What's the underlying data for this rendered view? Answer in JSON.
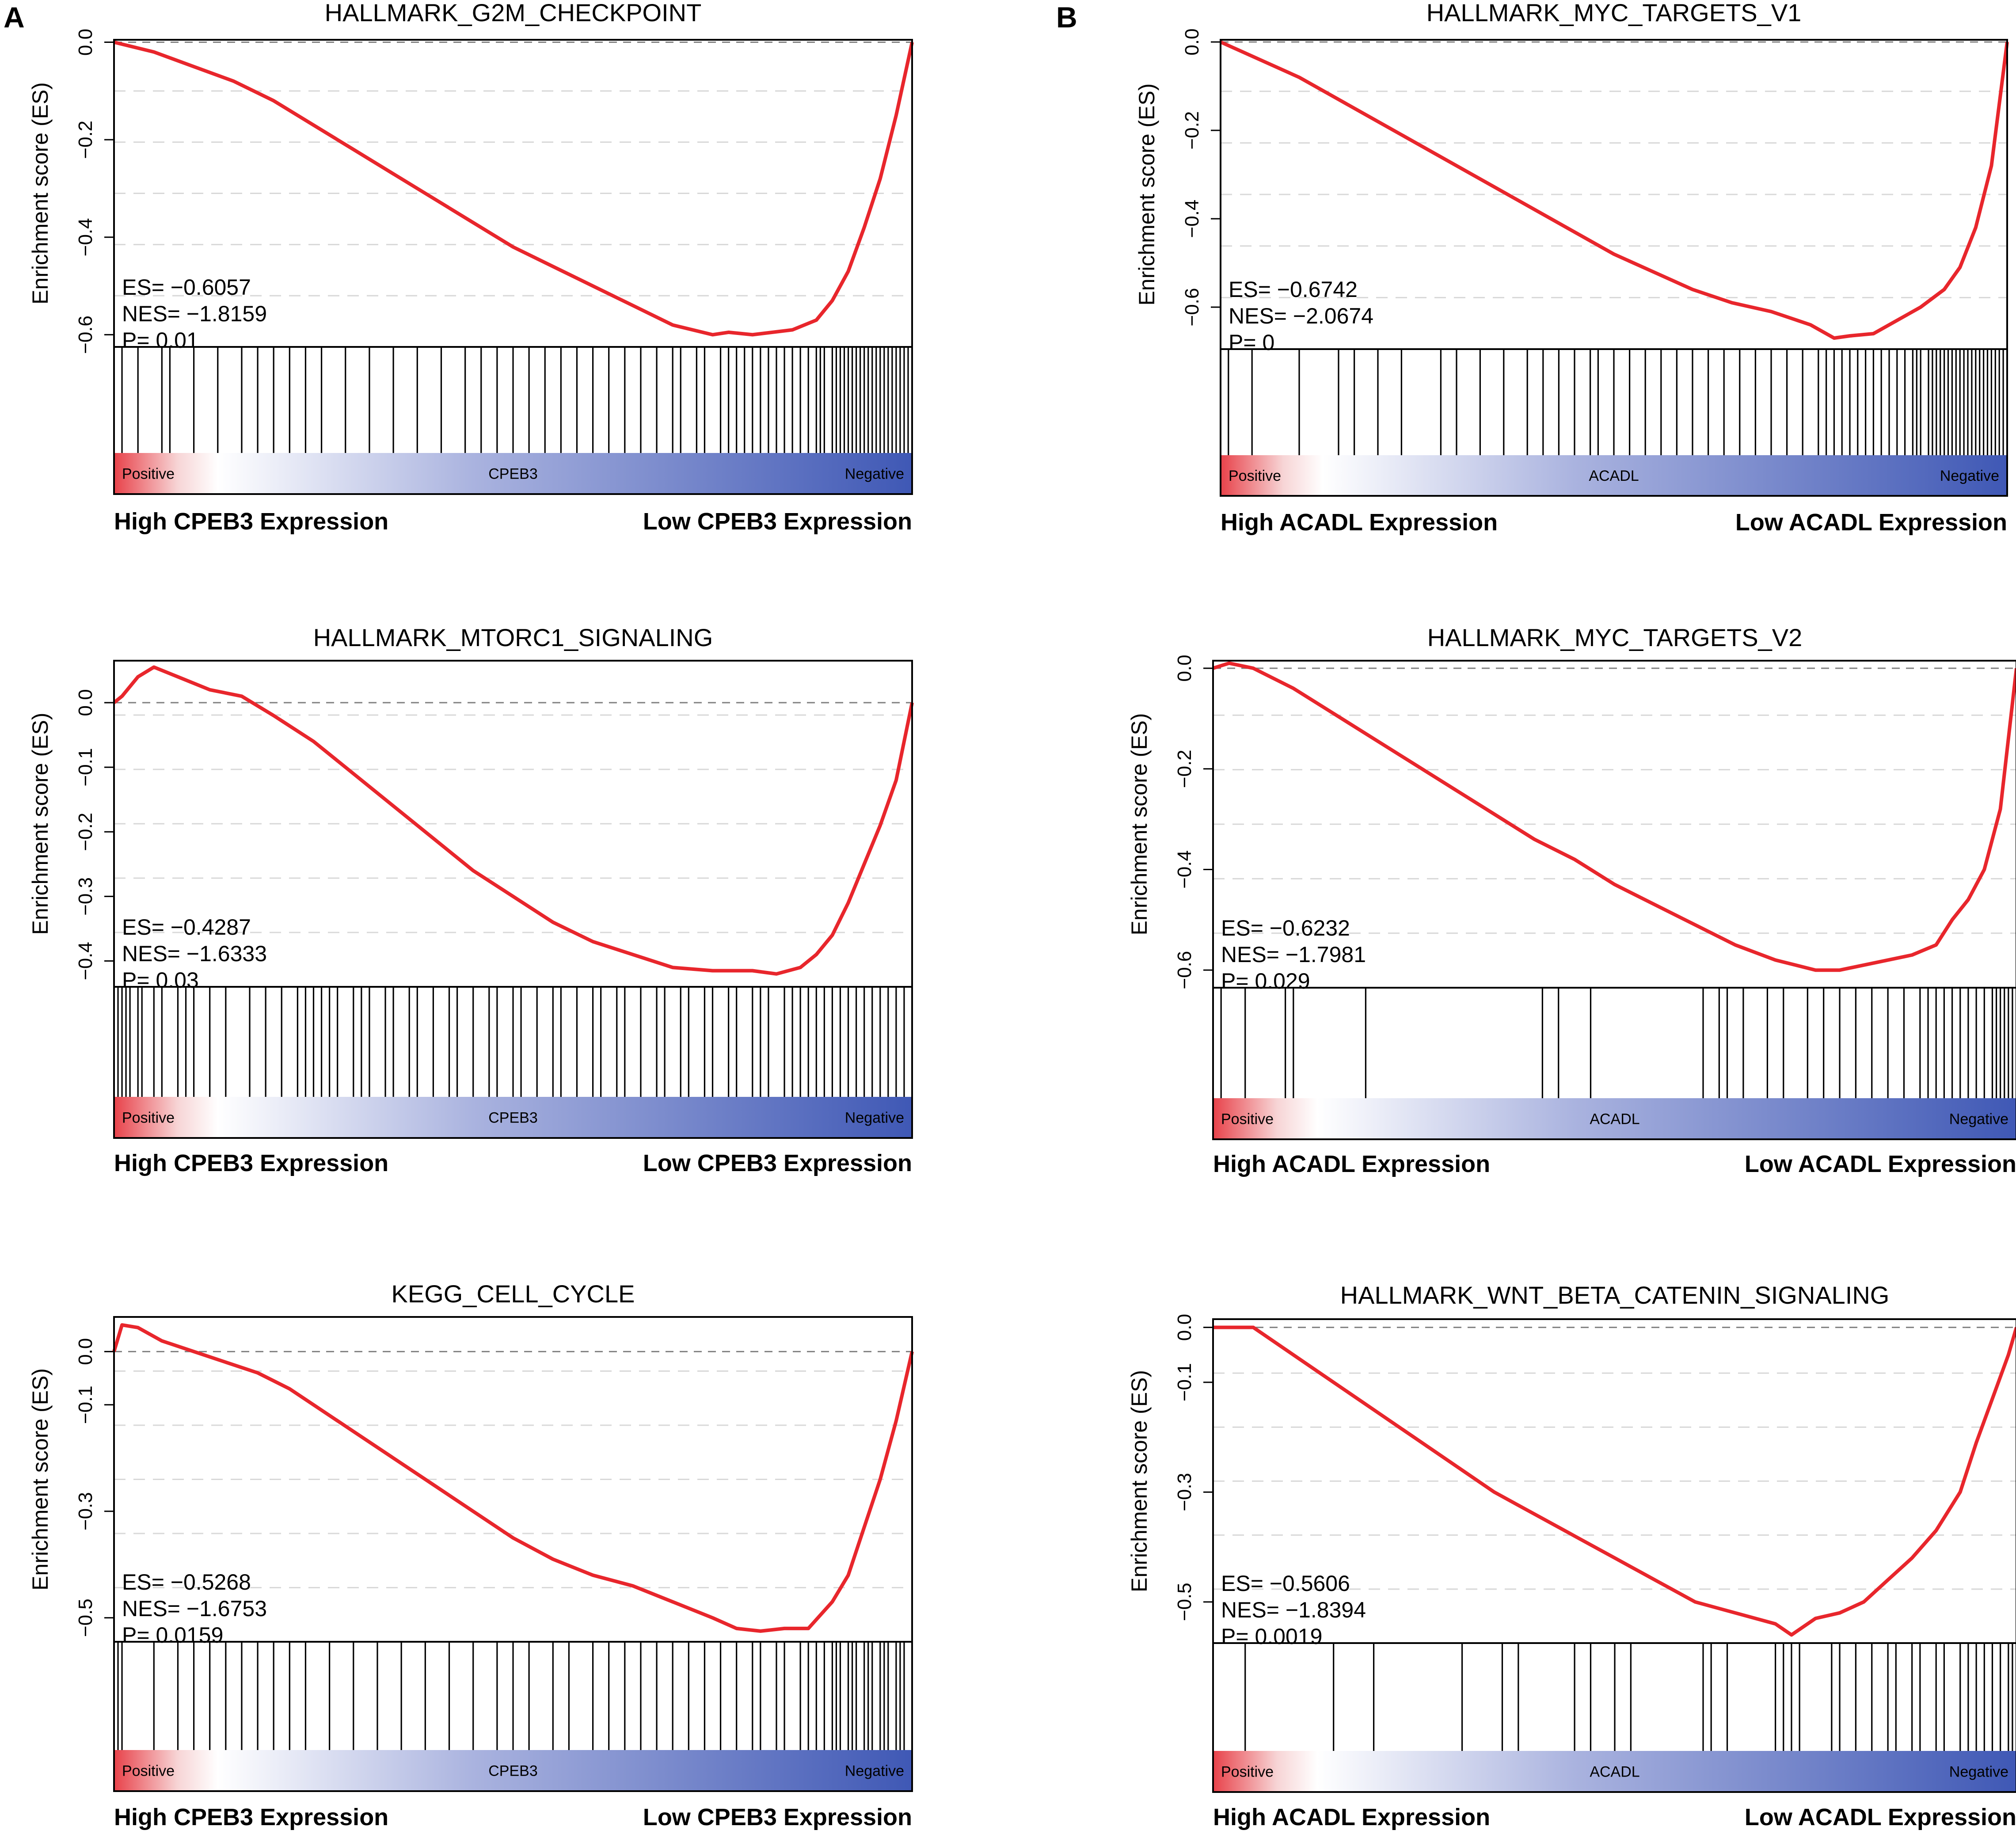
{
  "panel_letters": {
    "left": "A",
    "right": "B"
  },
  "colors": {
    "curve": "#e8262c",
    "positive": "#e8424a",
    "negative": "#3f58b5",
    "mid": "#ffffff",
    "zero_line": "#808080",
    "grid": "#d8d8d8"
  },
  "chart_data": [
    {
      "type": "line",
      "panel": "A",
      "title": "HALLMARK_G2M_CHECKPOINT",
      "ylabel": "Enrichment score (ES)",
      "yticks": [
        0.0,
        -0.2,
        -0.4,
        -0.6
      ],
      "ytick_labels": [
        "0.0",
        "-0.2",
        "-0.4",
        "-0.6"
      ],
      "ylim": [
        -0.625,
        0.005
      ],
      "x": [
        0,
        0.05,
        0.1,
        0.15,
        0.2,
        0.25,
        0.3,
        0.35,
        0.4,
        0.45,
        0.5,
        0.55,
        0.6,
        0.65,
        0.7,
        0.75,
        0.77,
        0.8,
        0.85,
        0.88,
        0.9,
        0.92,
        0.94,
        0.96,
        0.98,
        1.0
      ],
      "es": [
        0.0,
        -0.02,
        -0.05,
        -0.08,
        -0.12,
        -0.17,
        -0.22,
        -0.27,
        -0.32,
        -0.37,
        -0.42,
        -0.46,
        -0.5,
        -0.54,
        -0.58,
        -0.6,
        -0.595,
        -0.6,
        -0.59,
        -0.57,
        -0.53,
        -0.47,
        -0.38,
        -0.28,
        -0.15,
        0.0
      ],
      "stats": {
        "es": "ES= −0.6057",
        "nes": "NES= −1.8159",
        "p": "P= 0.01"
      },
      "hits": [
        0.01,
        0.03,
        0.06,
        0.07,
        0.1,
        0.13,
        0.16,
        0.18,
        0.2,
        0.22,
        0.24,
        0.26,
        0.29,
        0.32,
        0.35,
        0.38,
        0.41,
        0.44,
        0.46,
        0.48,
        0.5,
        0.52,
        0.54,
        0.56,
        0.58,
        0.6,
        0.62,
        0.64,
        0.66,
        0.68,
        0.7,
        0.71,
        0.73,
        0.74,
        0.76,
        0.77,
        0.78,
        0.79,
        0.8,
        0.81,
        0.82,
        0.83,
        0.84,
        0.85,
        0.86,
        0.87,
        0.88,
        0.885,
        0.89,
        0.9,
        0.905,
        0.91,
        0.915,
        0.92,
        0.925,
        0.93,
        0.935,
        0.94,
        0.945,
        0.95,
        0.955,
        0.96,
        0.965,
        0.97,
        0.975,
        0.98,
        0.985,
        0.99,
        0.995
      ],
      "gradient": {
        "left": "Positive",
        "center": "CPEB3",
        "right": "Negative"
      },
      "xlabels": {
        "left": "High CPEB3 Expression",
        "right": "Low CPEB3 Expression"
      }
    },
    {
      "type": "line",
      "panel": "A",
      "title": "HALLMARK_MTORC1_SIGNALING",
      "ylabel": "Enrichment score (ES)",
      "yticks": [
        0.0,
        -0.1,
        -0.2,
        -0.3,
        -0.4
      ],
      "ytick_labels": [
        "0.0",
        "-0.1",
        "-0.2",
        "-0.3",
        "-0.4"
      ],
      "ylim": [
        -0.44,
        0.065
      ],
      "x": [
        0,
        0.01,
        0.03,
        0.05,
        0.08,
        0.12,
        0.16,
        0.2,
        0.25,
        0.3,
        0.35,
        0.4,
        0.45,
        0.5,
        0.55,
        0.6,
        0.65,
        0.7,
        0.75,
        0.8,
        0.83,
        0.86,
        0.88,
        0.9,
        0.92,
        0.94,
        0.96,
        0.98,
        1.0
      ],
      "es": [
        0.0,
        0.01,
        0.04,
        0.055,
        0.04,
        0.02,
        0.01,
        -0.02,
        -0.06,
        -0.11,
        -0.16,
        -0.21,
        -0.26,
        -0.3,
        -0.34,
        -0.37,
        -0.39,
        -0.41,
        -0.415,
        -0.415,
        -0.42,
        -0.41,
        -0.39,
        -0.36,
        -0.31,
        -0.25,
        -0.19,
        -0.12,
        0.0
      ],
      "stats": {
        "es": "ES= −0.4287",
        "nes": "NES= −1.6333",
        "p": "P= 0.03"
      },
      "hits": [
        0.005,
        0.01,
        0.015,
        0.02,
        0.03,
        0.035,
        0.05,
        0.06,
        0.08,
        0.09,
        0.1,
        0.12,
        0.14,
        0.17,
        0.19,
        0.21,
        0.23,
        0.24,
        0.25,
        0.26,
        0.27,
        0.28,
        0.3,
        0.31,
        0.32,
        0.34,
        0.35,
        0.37,
        0.38,
        0.4,
        0.42,
        0.43,
        0.45,
        0.47,
        0.48,
        0.5,
        0.51,
        0.53,
        0.55,
        0.56,
        0.58,
        0.6,
        0.61,
        0.63,
        0.64,
        0.66,
        0.68,
        0.69,
        0.71,
        0.72,
        0.74,
        0.75,
        0.77,
        0.78,
        0.8,
        0.81,
        0.82,
        0.84,
        0.85,
        0.86,
        0.87,
        0.88,
        0.89,
        0.9,
        0.91,
        0.92,
        0.93,
        0.94,
        0.95,
        0.96,
        0.97,
        0.98,
        0.99
      ],
      "gradient": {
        "left": "Positive",
        "center": "CPEB3",
        "right": "Negative"
      },
      "xlabels": {
        "left": "High CPEB3 Expression",
        "right": "Low CPEB3 Expression"
      }
    },
    {
      "type": "line",
      "panel": "A",
      "title": "KEGG_CELL_CYCLE",
      "ylabel": "Enrichment score (ES)",
      "yticks": [
        0.0,
        -0.1,
        -0.3,
        -0.5
      ],
      "ytick_labels": [
        "0.0",
        "-0.1",
        "-0.3",
        "-0.5"
      ],
      "ylim": [
        -0.545,
        0.065
      ],
      "x": [
        0,
        0.01,
        0.03,
        0.06,
        0.1,
        0.14,
        0.18,
        0.22,
        0.26,
        0.3,
        0.35,
        0.4,
        0.45,
        0.5,
        0.55,
        0.6,
        0.65,
        0.7,
        0.75,
        0.78,
        0.81,
        0.84,
        0.87,
        0.9,
        0.92,
        0.94,
        0.96,
        0.98,
        1.0
      ],
      "es": [
        0.0,
        0.05,
        0.045,
        0.02,
        0.0,
        -0.02,
        -0.04,
        -0.07,
        -0.11,
        -0.15,
        -0.2,
        -0.25,
        -0.3,
        -0.35,
        -0.39,
        -0.42,
        -0.44,
        -0.47,
        -0.5,
        -0.52,
        -0.525,
        -0.52,
        -0.52,
        -0.47,
        -0.42,
        -0.33,
        -0.24,
        -0.13,
        0.0
      ],
      "stats": {
        "es": "ES= −0.5268",
        "nes": "NES= −1.6753",
        "p": "P= 0.0159"
      },
      "hits": [
        0.005,
        0.01,
        0.05,
        0.08,
        0.1,
        0.12,
        0.14,
        0.16,
        0.18,
        0.2,
        0.22,
        0.24,
        0.27,
        0.3,
        0.33,
        0.36,
        0.39,
        0.42,
        0.45,
        0.48,
        0.5,
        0.52,
        0.55,
        0.57,
        0.6,
        0.62,
        0.64,
        0.66,
        0.68,
        0.7,
        0.72,
        0.74,
        0.76,
        0.78,
        0.8,
        0.81,
        0.83,
        0.84,
        0.86,
        0.87,
        0.88,
        0.89,
        0.9,
        0.905,
        0.91,
        0.92,
        0.925,
        0.93,
        0.94,
        0.945,
        0.95,
        0.96,
        0.965,
        0.97,
        0.98,
        0.985,
        0.99
      ],
      "gradient": {
        "left": "Positive",
        "center": "CPEB3",
        "right": "Negative"
      },
      "xlabels": {
        "left": "High CPEB3 Expression",
        "right": "Low CPEB3 Expression"
      }
    },
    {
      "type": "line",
      "panel": "B",
      "title": "HALLMARK_MYC_TARGETS_V1",
      "ylabel": "Enrichment score (ES)",
      "yticks": [
        0.0,
        -0.2,
        -0.4,
        -0.6
      ],
      "ytick_labels": [
        "0.0",
        "-0.2",
        "-0.4",
        "-0.6"
      ],
      "ylim": [
        -0.695,
        0.005
      ],
      "x": [
        0,
        0.05,
        0.1,
        0.15,
        0.2,
        0.25,
        0.3,
        0.35,
        0.4,
        0.45,
        0.5,
        0.55,
        0.6,
        0.65,
        0.7,
        0.75,
        0.78,
        0.8,
        0.83,
        0.86,
        0.89,
        0.92,
        0.94,
        0.96,
        0.98,
        1.0
      ],
      "es": [
        0.0,
        -0.04,
        -0.08,
        -0.13,
        -0.18,
        -0.23,
        -0.28,
        -0.33,
        -0.38,
        -0.43,
        -0.48,
        -0.52,
        -0.56,
        -0.59,
        -0.61,
        -0.64,
        -0.67,
        -0.665,
        -0.66,
        -0.63,
        -0.6,
        -0.56,
        -0.51,
        -0.42,
        -0.28,
        0.0
      ],
      "stats": {
        "es": "ES= −0.6742",
        "nes": "NES= −2.0674",
        "p": "P= 0"
      },
      "hits": [
        0.01,
        0.04,
        0.1,
        0.15,
        0.17,
        0.2,
        0.23,
        0.28,
        0.3,
        0.33,
        0.36,
        0.39,
        0.41,
        0.43,
        0.45,
        0.47,
        0.48,
        0.5,
        0.52,
        0.54,
        0.56,
        0.58,
        0.6,
        0.62,
        0.64,
        0.66,
        0.68,
        0.7,
        0.72,
        0.74,
        0.76,
        0.77,
        0.78,
        0.79,
        0.8,
        0.81,
        0.82,
        0.83,
        0.84,
        0.85,
        0.86,
        0.87,
        0.88,
        0.885,
        0.89,
        0.9,
        0.905,
        0.91,
        0.915,
        0.92,
        0.925,
        0.93,
        0.935,
        0.94,
        0.945,
        0.95,
        0.955,
        0.96,
        0.965,
        0.97,
        0.975,
        0.98,
        0.985,
        0.99,
        0.995
      ],
      "gradient": {
        "left": "Positive",
        "center": "ACADL",
        "right": "Negative"
      },
      "xlabels": {
        "left": "High ACADL Expression",
        "right": "Low ACADL Expression"
      }
    },
    {
      "type": "line",
      "panel": "B",
      "title": "HALLMARK_MYC_TARGETS_V2",
      "ylabel": "Enrichment score (ES)",
      "yticks": [
        0.0,
        -0.2,
        -0.4,
        -0.6
      ],
      "ytick_labels": [
        "0.0",
        "-0.2",
        "-0.4",
        "-0.6"
      ],
      "ylim": [
        -0.635,
        0.015
      ],
      "x": [
        0,
        0.02,
        0.05,
        0.1,
        0.15,
        0.2,
        0.25,
        0.3,
        0.35,
        0.4,
        0.45,
        0.5,
        0.55,
        0.6,
        0.65,
        0.7,
        0.75,
        0.78,
        0.81,
        0.84,
        0.87,
        0.9,
        0.92,
        0.94,
        0.96,
        0.98,
        1.0
      ],
      "es": [
        0.0,
        0.01,
        0.0,
        -0.04,
        -0.09,
        -0.14,
        -0.19,
        -0.24,
        -0.29,
        -0.34,
        -0.38,
        -0.43,
        -0.47,
        -0.51,
        -0.55,
        -0.58,
        -0.6,
        -0.6,
        -0.59,
        -0.58,
        -0.57,
        -0.55,
        -0.5,
        -0.46,
        -0.4,
        -0.28,
        0.0
      ],
      "stats": {
        "es": "ES= −0.6232",
        "nes": "NES= −1.7981",
        "p": "P= 0.029"
      },
      "hits": [
        0.01,
        0.04,
        0.09,
        0.1,
        0.19,
        0.41,
        0.43,
        0.47,
        0.61,
        0.63,
        0.64,
        0.66,
        0.69,
        0.71,
        0.74,
        0.76,
        0.78,
        0.8,
        0.82,
        0.84,
        0.86,
        0.88,
        0.89,
        0.9,
        0.91,
        0.92,
        0.93,
        0.94,
        0.95,
        0.96,
        0.97,
        0.975,
        0.98,
        0.985,
        0.99,
        0.995
      ],
      "gradient": {
        "left": "Positive",
        "center": "ACADL",
        "right": "Negative"
      },
      "xlabels": {
        "left": "High ACADL Expression",
        "right": "Low ACADL Expression"
      }
    },
    {
      "type": "line",
      "panel": "B",
      "title": "HALLMARK_WNT_BETA_CATENIN_SIGNALING",
      "ylabel": "Enrichment score (ES)",
      "yticks": [
        0.0,
        -0.1,
        -0.3,
        -0.5
      ],
      "ytick_labels": [
        "0.0",
        "-0.1",
        "-0.3",
        "-0.5"
      ],
      "ylim": [
        -0.575,
        0.015
      ],
      "x": [
        0,
        0.03,
        0.05,
        0.1,
        0.15,
        0.2,
        0.25,
        0.3,
        0.35,
        0.4,
        0.45,
        0.5,
        0.55,
        0.6,
        0.65,
        0.7,
        0.72,
        0.75,
        0.78,
        0.81,
        0.84,
        0.87,
        0.9,
        0.93,
        0.95,
        0.97,
        0.99,
        1.0
      ],
      "es": [
        0.0,
        0.0,
        0.0,
        -0.05,
        -0.1,
        -0.15,
        -0.2,
        -0.25,
        -0.3,
        -0.34,
        -0.38,
        -0.42,
        -0.46,
        -0.5,
        -0.52,
        -0.54,
        -0.56,
        -0.53,
        -0.52,
        -0.5,
        -0.46,
        -0.42,
        -0.37,
        -0.3,
        -0.21,
        -0.13,
        -0.05,
        0.0
      ],
      "stats": {
        "es": "ES= −0.5606",
        "nes": "NES= −1.8394",
        "p": "P= 0.0019"
      },
      "hits": [
        0.04,
        0.15,
        0.2,
        0.31,
        0.36,
        0.38,
        0.45,
        0.47,
        0.5,
        0.52,
        0.61,
        0.62,
        0.64,
        0.7,
        0.71,
        0.72,
        0.73,
        0.77,
        0.78,
        0.8,
        0.82,
        0.84,
        0.85,
        0.87,
        0.88,
        0.9,
        0.91,
        0.93,
        0.94,
        0.95,
        0.96,
        0.97,
        0.98,
        0.99,
        0.995
      ],
      "gradient": {
        "left": "Positive",
        "center": "ACADL",
        "right": "Negative"
      },
      "xlabels": {
        "left": "High ACADL Expression",
        "right": "Low ACADL Expression"
      }
    }
  ]
}
